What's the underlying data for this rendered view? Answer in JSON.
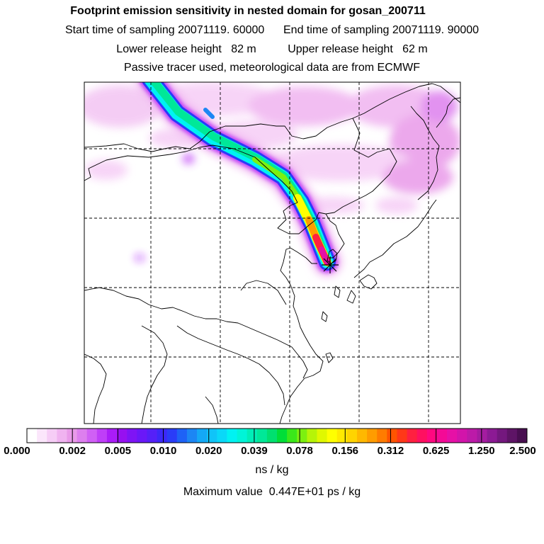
{
  "title": "Footprint emission sensitivity in nested domain for gosan_200711",
  "sampling": {
    "start_label": "Start time of sampling",
    "start_value": "20071119. 60000",
    "end_label": "End time of sampling",
    "end_value": "20071119. 90000"
  },
  "release": {
    "lower_label": "Lower release height",
    "lower_value": "82 m",
    "upper_label": "Upper release height",
    "upper_value": "62 m"
  },
  "tracer_note": "Passive tracer used, meteorological data are from ECMWF",
  "colorbar": {
    "ticks": [
      "0.000",
      "0.002",
      "0.005",
      "0.010",
      "0.020",
      "0.039",
      "0.078",
      "0.156",
      "0.312",
      "0.625",
      "1.250",
      "2.500"
    ],
    "colors": [
      "#ffffff",
      "#fbe6fb",
      "#f6cdf6",
      "#f0b3f0",
      "#e99ae9",
      "#dd7fee",
      "#d060f5",
      "#bf3ef8",
      "#aa1cf8",
      "#9710f0",
      "#7e14f5",
      "#6a18f8",
      "#5520f8",
      "#3c28f8",
      "#2a3cf8",
      "#1e62f6",
      "#1c86f4",
      "#14a8f6",
      "#10c4f8",
      "#0ad8f8",
      "#00f2f2",
      "#00f4d8",
      "#00eeb8",
      "#00e898",
      "#00e070",
      "#00de38",
      "#3ae81a",
      "#7cf010",
      "#b6f408",
      "#e0f800",
      "#ffff00",
      "#ffea00",
      "#ffd400",
      "#ffb800",
      "#ff9c00",
      "#ff7c00",
      "#ff5400",
      "#ff3818",
      "#ff2040",
      "#ff1060",
      "#ff0880",
      "#f40a96",
      "#e610a6",
      "#d214aa",
      "#bc1aa8",
      "#a41ca0",
      "#8c1a94",
      "#74187e",
      "#5e1466",
      "#480e50"
    ],
    "unit": "ns / kg"
  },
  "maximum": {
    "label": "Maximum value",
    "value": "0.447E+01 ps / kg"
  },
  "receptor_marker": "star"
}
